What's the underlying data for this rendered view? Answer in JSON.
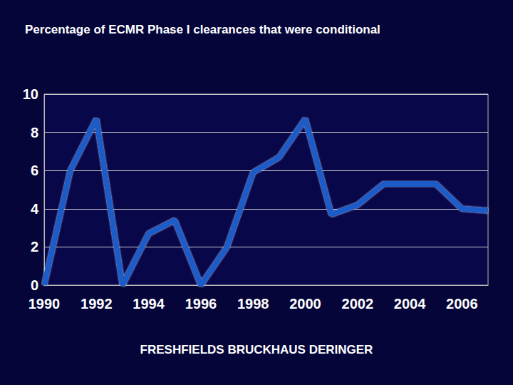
{
  "chart_data": {
    "type": "line",
    "title": "Percentage of ECMR Phase I clearances that were conditional",
    "source": "FRESHFIELDS BRUCKHAUS DERINGER",
    "categories": [
      "1990",
      null,
      "1992",
      null,
      "1994",
      null,
      "1996",
      null,
      "1998",
      null,
      "2000",
      null,
      "2002",
      null,
      "2004",
      null,
      "2006",
      null
    ],
    "values": [
      0,
      6,
      8.7,
      0,
      2.7,
      3.4,
      0,
      2,
      5.9,
      6.7,
      8.7,
      3.7,
      4.2,
      5.3,
      5.3,
      5.3,
      4,
      3.9
    ],
    "color": "#1a5cc8",
    "ylim": [
      0,
      10
    ],
    "yticks": [
      0,
      2,
      4,
      6,
      8,
      10
    ],
    "grid": true
  }
}
